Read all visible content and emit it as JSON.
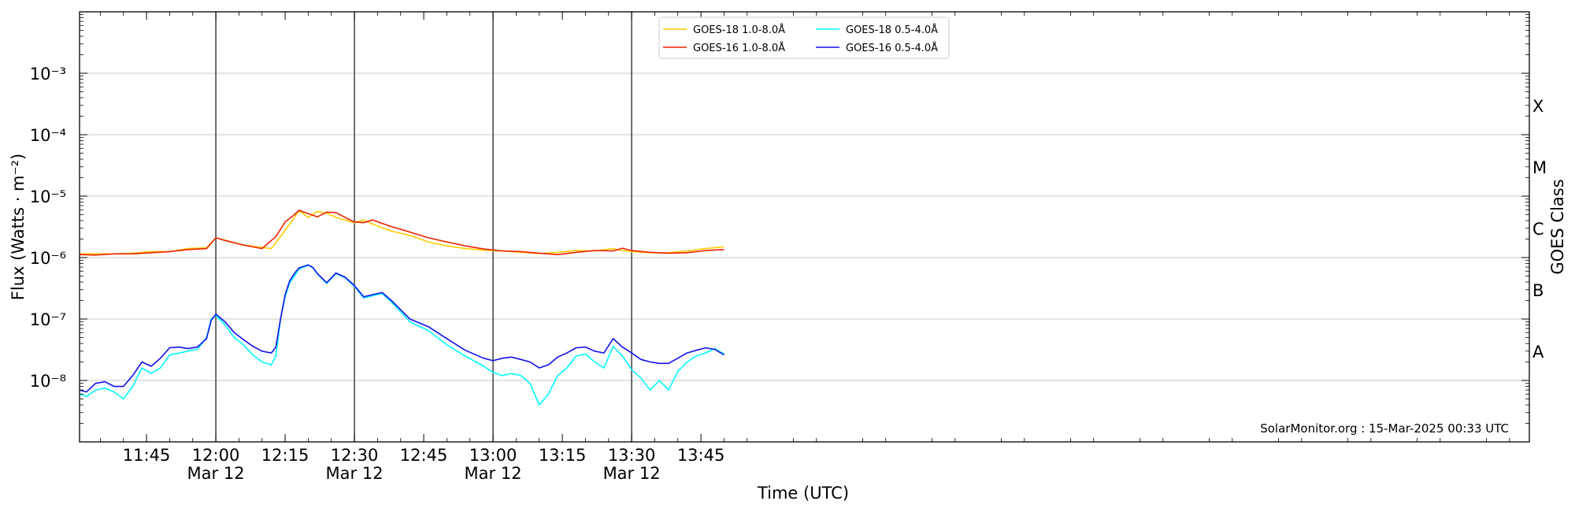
{
  "chart_data": {
    "type": "line",
    "title": "",
    "xlabel": "Time (UTC)",
    "ylabel": "Flux (Watts · m⁻²)",
    "y2label": "GOES Class",
    "yscale": "log",
    "ylim": [
      1e-09,
      0.01
    ],
    "xlim_minutes": [
      690.5,
      1004.3
    ],
    "x_ticks": [
      {
        "t": 705,
        "time": "11:45",
        "date": ""
      },
      {
        "t": 720,
        "time": "12:00",
        "date": "Mar 12"
      },
      {
        "t": 735,
        "time": "12:15",
        "date": ""
      },
      {
        "t": 750,
        "time": "12:30",
        "date": "Mar 12"
      },
      {
        "t": 765,
        "time": "12:45",
        "date": ""
      },
      {
        "t": 780,
        "time": "13:00",
        "date": "Mar 12"
      },
      {
        "t": 795,
        "time": "13:15",
        "date": ""
      },
      {
        "t": 810,
        "time": "13:30",
        "date": "Mar 12"
      },
      {
        "t": 825,
        "time": "13:45",
        "date": ""
      }
    ],
    "y_ticks": [
      {
        "v": 1e-08,
        "label": "10⁻⁸"
      },
      {
        "v": 1e-07,
        "label": "10⁻⁷"
      },
      {
        "v": 1e-06,
        "label": "10⁻⁶"
      },
      {
        "v": 1e-05,
        "label": "10⁻⁵"
      },
      {
        "v": 0.0001,
        "label": "10⁻⁴"
      },
      {
        "v": 0.001,
        "label": "10⁻³"
      }
    ],
    "class_labels": [
      {
        "v": 3e-08,
        "label": "A"
      },
      {
        "v": 3e-07,
        "label": "B"
      },
      {
        "v": 3e-06,
        "label": "C"
      },
      {
        "v": 3e-05,
        "label": "M"
      },
      {
        "v": 0.0003,
        "label": "X"
      }
    ],
    "vertical_lines": [
      720,
      750,
      780,
      810
    ],
    "legend_position": "top-center",
    "series": [
      {
        "name": "GOES-18 1.0-8.0Å",
        "color": "#ffcc00",
        "x": [
          690.5,
          694,
          698,
          702,
          706,
          710,
          714,
          718,
          720,
          726,
          732,
          736,
          738,
          740,
          742,
          744,
          746,
          750,
          752,
          754,
          758,
          762,
          766,
          770,
          774,
          778,
          782,
          786,
          790,
          794,
          798,
          802,
          806,
          808,
          810,
          814,
          818,
          822,
          826,
          830
        ],
        "y": [
          1.15e-06,
          1.15e-06,
          1.15e-06,
          1.18e-06,
          1.25e-06,
          1.25e-06,
          1.4e-06,
          1.45e-06,
          2.1e-06,
          1.6e-06,
          1.4e-06,
          3.5e-06,
          5.8e-06,
          4.5e-06,
          5.6e-06,
          5.3e-06,
          4.5e-06,
          3.7e-06,
          4.1e-06,
          3.5e-06,
          2.7e-06,
          2.3e-06,
          1.8e-06,
          1.55e-06,
          1.4e-06,
          1.32e-06,
          1.28e-06,
          1.22e-06,
          1.16e-06,
          1.22e-06,
          1.3e-06,
          1.28e-06,
          1.4e-06,
          1.3e-06,
          1.25e-06,
          1.2e-06,
          1.2e-06,
          1.28e-06,
          1.4e-06,
          1.5e-06
        ]
      },
      {
        "name": "GOES-16 1.0-8.0Å",
        "color": "#ee2200",
        "x": [
          690.5,
          694,
          698,
          702,
          706,
          710,
          714,
          718,
          720,
          722,
          726,
          730,
          733,
          735,
          737,
          738,
          740,
          742,
          744,
          746,
          748,
          750,
          752,
          754,
          756,
          758,
          762,
          766,
          770,
          774,
          778,
          782,
          786,
          790,
          794,
          798,
          802,
          806,
          808,
          810,
          814,
          818,
          822,
          826,
          830
        ],
        "y": [
          1.12e-06,
          1.1e-06,
          1.15e-06,
          1.15e-06,
          1.2e-06,
          1.25e-06,
          1.35e-06,
          1.4e-06,
          2.1e-06,
          1.9e-06,
          1.6e-06,
          1.4e-06,
          2.2e-06,
          3.8e-06,
          5e-06,
          5.9e-06,
          5.2e-06,
          4.6e-06,
          5.5e-06,
          5.4e-06,
          4.5e-06,
          3.8e-06,
          3.7e-06,
          4.1e-06,
          3.6e-06,
          3.2e-06,
          2.6e-06,
          2.1e-06,
          1.8e-06,
          1.55e-06,
          1.38e-06,
          1.28e-06,
          1.25e-06,
          1.18e-06,
          1.12e-06,
          1.22e-06,
          1.3e-06,
          1.28e-06,
          1.42e-06,
          1.3e-06,
          1.22e-06,
          1.18e-06,
          1.2e-06,
          1.3e-06,
          1.35e-06
        ]
      },
      {
        "name": "GOES-18 0.5-4.0Å",
        "color": "#00ffff",
        "x": [
          690.5,
          692,
          694,
          696,
          698,
          700,
          702,
          704,
          706,
          708,
          710,
          712,
          714,
          716,
          718,
          719,
          720,
          722,
          724,
          726,
          728,
          730,
          732,
          733,
          734,
          735,
          736,
          737,
          738,
          740,
          741,
          742,
          744,
          746,
          748,
          750,
          752,
          754,
          756,
          758,
          762,
          766,
          770,
          774,
          778,
          780,
          782,
          784,
          786,
          788,
          790,
          792,
          794,
          796,
          798,
          800,
          802,
          804,
          806,
          808,
          810,
          812,
          814,
          816,
          818,
          820,
          822,
          824,
          826,
          828,
          830
        ],
        "y": [
          6e-09,
          5.5e-09,
          7e-09,
          7.5e-09,
          6.5e-09,
          5e-09,
          8e-09,
          1.6e-08,
          1.3e-08,
          1.6e-08,
          2.6e-08,
          2.8e-08,
          3e-08,
          3.2e-08,
          5e-08,
          1e-07,
          1.15e-07,
          8e-08,
          5e-08,
          3.8e-08,
          2.6e-08,
          2e-08,
          1.8e-08,
          2.5e-08,
          1e-07,
          2.3e-07,
          3.9e-07,
          5e-07,
          6.5e-07,
          7.5e-07,
          6.8e-07,
          5.4e-07,
          3.8e-07,
          5.5e-07,
          4.7e-07,
          3.4e-07,
          2.2e-07,
          2.4e-07,
          2.6e-07,
          1.9e-07,
          9e-08,
          6.5e-08,
          3.8e-08,
          2.5e-08,
          1.7e-08,
          1.35e-08,
          1.2e-08,
          1.3e-08,
          1.2e-08,
          9e-09,
          4e-09,
          6e-09,
          1.2e-08,
          1.6e-08,
          2.5e-08,
          2.7e-08,
          2e-08,
          1.6e-08,
          3.6e-08,
          2.5e-08,
          1.5e-08,
          1.1e-08,
          7e-09,
          1e-08,
          7e-09,
          1.4e-08,
          2e-08,
          2.5e-08,
          2.8e-08,
          3.3e-08,
          2.7e-08
        ]
      },
      {
        "name": "GOES-16 0.5-4.0Å",
        "color": "#1111ee",
        "x": [
          690.5,
          692,
          694,
          696,
          698,
          700,
          702,
          704,
          706,
          708,
          710,
          712,
          714,
          716,
          718,
          719,
          720,
          722,
          724,
          726,
          728,
          730,
          732,
          733,
          734,
          735,
          736,
          737,
          738,
          740,
          741,
          742,
          744,
          746,
          748,
          750,
          752,
          754,
          756,
          758,
          762,
          766,
          770,
          774,
          778,
          780,
          782,
          784,
          786,
          788,
          790,
          792,
          794,
          796,
          798,
          800,
          802,
          804,
          806,
          808,
          810,
          812,
          814,
          816,
          818,
          820,
          822,
          824,
          826,
          828,
          830
        ],
        "y": [
          7e-09,
          6.5e-09,
          9e-09,
          9.5e-09,
          8e-09,
          8e-09,
          1.2e-08,
          2e-08,
          1.7e-08,
          2.3e-08,
          3.4e-08,
          3.5e-08,
          3.3e-08,
          3.5e-08,
          4.8e-08,
          9.5e-08,
          1.2e-07,
          9e-08,
          6e-08,
          4.6e-08,
          3.6e-08,
          3e-08,
          2.8e-08,
          3.5e-08,
          1e-07,
          2.5e-07,
          4.2e-07,
          5.5e-07,
          6.8e-07,
          7.6e-07,
          6.9e-07,
          5.5e-07,
          3.9e-07,
          5.6e-07,
          4.8e-07,
          3.5e-07,
          2.3e-07,
          2.5e-07,
          2.7e-07,
          2e-07,
          1e-07,
          7.5e-08,
          4.8e-08,
          3.1e-08,
          2.3e-08,
          2.1e-08,
          2.3e-08,
          2.4e-08,
          2.2e-08,
          2e-08,
          1.6e-08,
          1.8e-08,
          2.4e-08,
          2.8e-08,
          3.4e-08,
          3.5e-08,
          3e-08,
          2.8e-08,
          4.8e-08,
          3.5e-08,
          2.8e-08,
          2.2e-08,
          2e-08,
          1.9e-08,
          1.9e-08,
          2.3e-08,
          2.8e-08,
          3.1e-08,
          3.4e-08,
          3.2e-08,
          2.6e-08
        ]
      }
    ],
    "annotation": "SolarMonitor.org : 15-Mar-2025 00:33 UTC"
  }
}
